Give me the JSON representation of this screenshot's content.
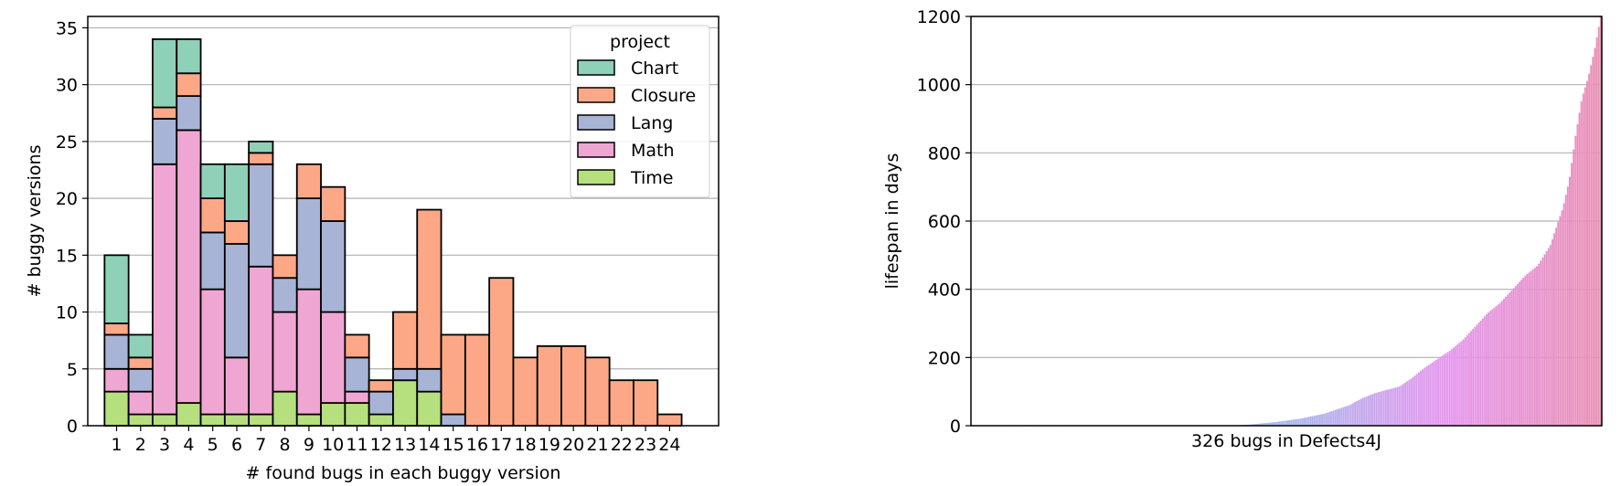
{
  "chart_data": [
    {
      "type": "bar",
      "stacked": true,
      "xlabel": "# found bugs in each buggy version",
      "ylabel": "# buggy versions",
      "ylim": [
        0,
        36
      ],
      "yticks": [
        0,
        5,
        10,
        15,
        20,
        25,
        30,
        35
      ],
      "grid": "y",
      "legend": {
        "title": "project",
        "placement": "top-right"
      },
      "categories": [
        "1",
        "2",
        "3",
        "4",
        "5",
        "6",
        "7",
        "8",
        "9",
        "10",
        "11",
        "12",
        "13",
        "14",
        "15",
        "16",
        "17",
        "18",
        "19",
        "20",
        "21",
        "22",
        "23",
        "24"
      ],
      "series": [
        {
          "name": "Time",
          "color": "#b6df7d",
          "values": [
            3,
            1,
            1,
            2,
            1,
            1,
            1,
            3,
            1,
            2,
            2,
            1,
            4,
            3,
            0,
            0,
            0,
            0,
            0,
            0,
            0,
            0,
            0,
            0
          ]
        },
        {
          "name": "Math",
          "color": "#f0a6d3",
          "values": [
            2,
            2,
            22,
            24,
            11,
            5,
            13,
            7,
            11,
            8,
            1,
            0,
            0,
            0,
            0,
            0,
            0,
            0,
            0,
            0,
            0,
            0,
            0,
            0
          ]
        },
        {
          "name": "Lang",
          "color": "#a7b4d6",
          "values": [
            3,
            2,
            4,
            3,
            5,
            10,
            9,
            3,
            8,
            8,
            3,
            2,
            1,
            2,
            1,
            0,
            0,
            0,
            0,
            0,
            0,
            0,
            0,
            0
          ]
        },
        {
          "name": "Closure",
          "color": "#fca887",
          "values": [
            1,
            1,
            1,
            2,
            3,
            2,
            1,
            2,
            3,
            3,
            2,
            1,
            5,
            14,
            7,
            8,
            13,
            6,
            7,
            7,
            6,
            4,
            4,
            1
          ]
        },
        {
          "name": "Chart",
          "color": "#8ed1b8",
          "values": [
            6,
            2,
            6,
            3,
            3,
            5,
            1,
            0,
            0,
            0,
            0,
            0,
            0,
            0,
            0,
            0,
            0,
            0,
            0,
            0,
            0,
            0,
            0,
            0
          ]
        }
      ],
      "legend_order": [
        "Chart",
        "Closure",
        "Lang",
        "Math",
        "Time"
      ]
    },
    {
      "type": "bar",
      "xlabel": "326 bugs in Defects4J",
      "ylabel": "lifespan in days",
      "ylim": [
        0,
        1200
      ],
      "yticks": [
        0,
        200,
        400,
        600,
        800,
        1000,
        1200
      ],
      "grid": "y",
      "count": 326,
      "sorted": "ascending",
      "gradient": [
        "#66c2a5",
        "#58b4d6",
        "#a6b8ec",
        "#e596ee",
        "#e88fb4"
      ],
      "profile": [
        [
          0,
          0
        ],
        [
          0.4,
          0
        ],
        [
          0.44,
          3
        ],
        [
          0.48,
          10
        ],
        [
          0.52,
          20
        ],
        [
          0.56,
          35
        ],
        [
          0.6,
          60
        ],
        [
          0.62,
          80
        ],
        [
          0.64,
          95
        ],
        [
          0.66,
          105
        ],
        [
          0.68,
          115
        ],
        [
          0.7,
          140
        ],
        [
          0.72,
          170
        ],
        [
          0.74,
          195
        ],
        [
          0.76,
          220
        ],
        [
          0.78,
          250
        ],
        [
          0.8,
          290
        ],
        [
          0.82,
          330
        ],
        [
          0.84,
          360
        ],
        [
          0.86,
          400
        ],
        [
          0.88,
          440
        ],
        [
          0.9,
          470
        ],
        [
          0.92,
          530
        ],
        [
          0.94,
          640
        ],
        [
          0.95,
          720
        ],
        [
          0.96,
          850
        ],
        [
          0.97,
          960
        ],
        [
          0.98,
          1020
        ],
        [
          0.99,
          1100
        ],
        [
          1.0,
          1200
        ]
      ]
    }
  ]
}
